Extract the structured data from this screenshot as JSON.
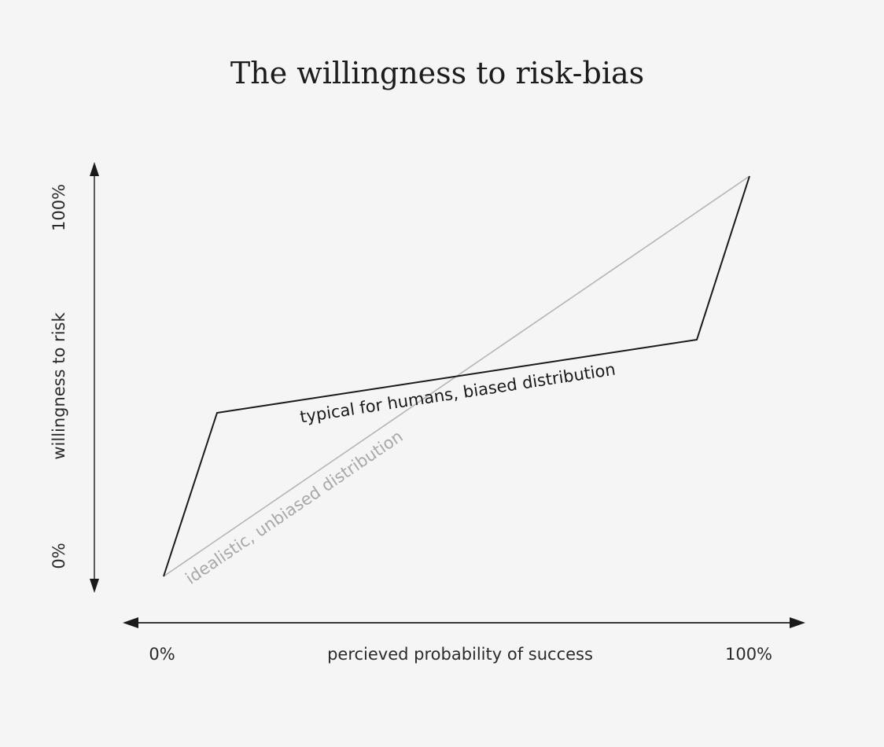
{
  "title": "The willingness to risk-bias",
  "y_axis": {
    "label": "willingness to risk",
    "min_label": "0%",
    "max_label": "100%"
  },
  "x_axis": {
    "label": "percieved probability of success",
    "min_label": "0%",
    "max_label": "100%"
  },
  "curves": {
    "biased": {
      "label": "typical for humans, biased distribution",
      "color": "#1a1a1a"
    },
    "unbiased": {
      "label": "idealistic, unbiased distribution",
      "color": "#b5b5b5"
    }
  },
  "colors": {
    "background": "#f5f5f5",
    "axis": "#1a1a1a",
    "text": "#2a2a2a"
  }
}
